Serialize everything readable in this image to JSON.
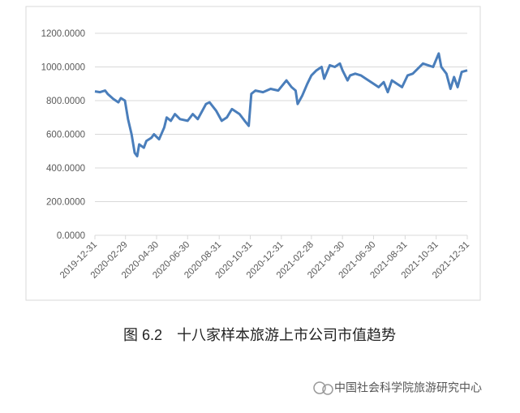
{
  "chart_data": {
    "type": "line",
    "x": [
      "2019-12-31",
      "2020-01-10",
      "2020-01-20",
      "2020-01-25",
      "2020-02-05",
      "2020-02-15",
      "2020-02-20",
      "2020-02-28",
      "2020-03-05",
      "2020-03-12",
      "2020-03-18",
      "2020-03-23",
      "2020-03-27",
      "2020-04-05",
      "2020-04-10",
      "2020-04-20",
      "2020-04-25",
      "2020-05-05",
      "2020-05-15",
      "2020-05-20",
      "2020-05-28",
      "2020-06-05",
      "2020-06-15",
      "2020-06-30",
      "2020-07-10",
      "2020-07-20",
      "2020-08-05",
      "2020-08-12",
      "2020-08-25",
      "2020-09-05",
      "2020-09-15",
      "2020-09-25",
      "2020-10-10",
      "2020-10-20",
      "2020-10-28",
      "2020-11-02",
      "2020-11-10",
      "2020-11-25",
      "2020-12-10",
      "2020-12-25",
      "2021-01-10",
      "2021-01-20",
      "2021-01-28",
      "2021-02-01",
      "2021-02-10",
      "2021-02-20",
      "2021-02-28",
      "2021-03-10",
      "2021-03-20",
      "2021-03-25",
      "2021-04-05",
      "2021-04-15",
      "2021-04-25",
      "2021-04-30",
      "2021-05-10",
      "2021-05-15",
      "2021-05-25",
      "2021-06-05",
      "2021-06-15",
      "2021-06-30",
      "2021-07-10",
      "2021-07-20",
      "2021-07-28",
      "2021-08-05",
      "2021-08-15",
      "2021-08-25",
      "2021-09-05",
      "2021-09-15",
      "2021-09-25",
      "2021-10-05",
      "2021-10-15",
      "2021-10-25",
      "2021-11-05",
      "2021-11-10",
      "2021-11-20",
      "2021-11-28",
      "2021-12-05",
      "2021-12-12",
      "2021-12-20",
      "2021-12-31"
    ],
    "series": [
      {
        "color": "#4a7ebb",
        "values": [
          855,
          850,
          860,
          840,
          810,
          790,
          815,
          800,
          690,
          600,
          490,
          470,
          540,
          520,
          560,
          580,
          600,
          570,
          640,
          700,
          680,
          720,
          690,
          680,
          720,
          690,
          780,
          790,
          740,
          680,
          700,
          750,
          720,
          680,
          650,
          840,
          860,
          850,
          870,
          860,
          920,
          880,
          860,
          780,
          830,
          900,
          950,
          980,
          1000,
          930,
          1010,
          1000,
          1020,
          980,
          920,
          950,
          960,
          950,
          930,
          900,
          880,
          910,
          850,
          920,
          900,
          880,
          950,
          960,
          990,
          1020,
          1010,
          1000,
          1080,
          1000,
          960,
          870,
          940,
          880,
          970,
          980
        ]
      }
    ],
    "xlim": [
      "2019-12-31",
      "2021-12-31"
    ],
    "xticks": [
      "2019-12-31",
      "2020-02-29",
      "2020-04-30",
      "2020-06-30",
      "2020-08-31",
      "2020-10-31",
      "2020-12-31",
      "2021-02-28",
      "2021-04-30",
      "2021-06-30",
      "2021-08-31",
      "2021-10-31",
      "2021-12-31"
    ],
    "ylim": [
      0,
      1200
    ],
    "yticks": [
      {
        "value": 0,
        "label": "0.0000"
      },
      {
        "value": 200,
        "label": "200.0000"
      },
      {
        "value": 400,
        "label": "400.0000"
      },
      {
        "value": 600,
        "label": "600.0000"
      },
      {
        "value": 800,
        "label": "800.0000"
      },
      {
        "value": 1000,
        "label": "1000.0000"
      },
      {
        "value": 1200,
        "label": "1200.0000"
      }
    ],
    "grid": true
  },
  "caption": "图 6.2　十八家样本旅游上市公司市值趋势",
  "watermark": "中国社会科学院旅游研究中心"
}
